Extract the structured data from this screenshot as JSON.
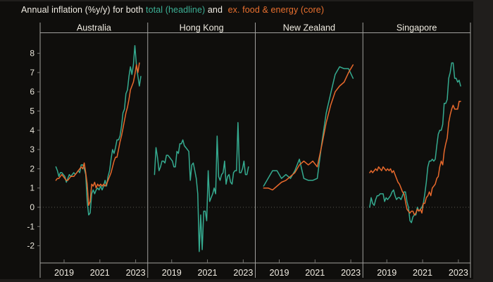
{
  "title": {
    "prefix": "Annual inflation (%y/y) for both ",
    "headline_label": "total (headline)",
    "connector": " and ",
    "core_label": "ex. food & energy (core)"
  },
  "colors": {
    "headline": "#35ab90",
    "core": "#e8692c",
    "frame": "#a0a09d",
    "tick": "#777672",
    "zero_line": "#57554e",
    "chart_background": "#0f0e0c",
    "page_background": "#201e1c",
    "text": "#efebe1"
  },
  "axis": {
    "y_ticks": [
      8,
      7,
      6,
      5,
      4,
      3,
      2,
      1,
      0,
      -1,
      -2
    ],
    "x_ticks": [
      2019,
      2021,
      2023
    ]
  },
  "chart_data": {
    "type": "line",
    "y_label": "%y/y",
    "ylim": [
      -2.9,
      9.1
    ],
    "x_range_years": [
      2017.6,
      2023.75
    ],
    "grid": "zero-line-only-dotted",
    "legend_position": "in-title",
    "panels": [
      {
        "name": "Australia",
        "series": [
          {
            "name": "total (headline)",
            "role": "headline",
            "start": "2018-07",
            "frequency": "monthly",
            "values": [
              2.1,
              1.9,
              1.6,
              1.8,
              1.8,
              1.7,
              1.6,
              1.3,
              1.5,
              1.7,
              1.6,
              1.7,
              1.8,
              1.7,
              1.8,
              1.9,
              1.8,
              2.2,
              2.2,
              2.0,
              1.7,
              0.3,
              -0.4,
              -0.3,
              0.7,
              0.9,
              0.7,
              0.9,
              1.0,
              0.9,
              1.1,
              0.9,
              1.1,
              1.4,
              1.1,
              1.6,
              1.9,
              2.5,
              3.0,
              2.8,
              3.1,
              3.5,
              3.5,
              3.7,
              4.2,
              4.9,
              5.1,
              5.9,
              6.1,
              6.8,
              7.3,
              6.9,
              7.4,
              8.4,
              7.4,
              6.8,
              6.3,
              6.8
            ]
          },
          {
            "name": "ex. food & energy (core)",
            "role": "core",
            "start": "2018-07",
            "frequency": "monthly",
            "values": [
              1.4,
              1.5,
              1.5,
              1.6,
              1.7,
              1.6,
              1.5,
              1.4,
              1.4,
              1.5,
              1.6,
              1.6,
              1.6,
              1.7,
              1.8,
              1.9,
              2.0,
              2.1,
              2.0,
              2.3,
              1.8,
              1.2,
              0.1,
              0.3,
              1.2,
              1.1,
              1.3,
              1.0,
              1.2,
              1.1,
              1.2,
              1.1,
              1.2,
              1.1,
              1.2,
              1.4,
              1.6,
              1.8,
              2.1,
              2.4,
              2.6,
              2.6,
              3.0,
              3.4,
              3.7,
              4.1,
              4.5,
              4.9,
              5.2,
              5.6,
              6.1,
              6.3,
              6.5,
              6.9,
              7.4,
              7.0,
              7.5
            ]
          }
        ]
      },
      {
        "name": "Hong Kong",
        "series": [
          {
            "name": "total (headline)",
            "role": "headline",
            "start": "2018-01",
            "frequency": "monthly",
            "values": [
              1.7,
              3.1,
              2.6,
              1.9,
              2.1,
              2.4,
              2.4,
              2.3,
              2.7,
              2.7,
              2.6,
              2.5,
              2.4,
              2.1,
              2.1,
              2.9,
              2.8,
              3.3,
              3.3,
              3.5,
              3.2,
              3.1,
              3.0,
              2.9,
              1.4,
              2.2,
              2.3,
              1.9,
              1.5,
              0.7,
              -2.3,
              -0.4,
              -2.2,
              -0.2,
              -0.2,
              -0.7,
              1.9,
              0.3,
              0.5,
              0.7,
              1.0,
              0.7,
              3.7,
              1.6,
              1.4,
              1.7,
              1.8,
              2.4,
              1.2,
              1.6,
              1.7,
              1.3,
              1.2,
              1.8,
              1.9,
              1.9,
              4.4,
              1.8,
              1.8,
              2.0,
              2.4,
              1.7,
              1.7,
              2.1
            ]
          }
        ]
      },
      {
        "name": "New Zealand",
        "series": [
          {
            "name": "total (headline)",
            "role": "headline",
            "start": "2018-Q1",
            "frequency": "quarterly",
            "values": [
              1.1,
              1.5,
              1.9,
              1.9,
              1.5,
              1.7,
              1.5,
              1.9,
              2.5,
              1.5,
              1.4,
              1.4,
              1.5,
              3.3,
              4.9,
              5.9,
              6.9,
              7.3,
              7.2,
              7.2,
              6.7
            ]
          },
          {
            "name": "ex. food & energy (core)",
            "role": "core",
            "start": "2018-Q1",
            "frequency": "quarterly",
            "values": [
              1.0,
              1.0,
              0.9,
              1.1,
              1.3,
              1.4,
              1.6,
              1.8,
              2.2,
              2.4,
              2.2,
              2.4,
              2.1,
              3.2,
              4.4,
              5.3,
              6.0,
              6.3,
              6.5,
              7.0,
              7.4
            ]
          }
        ]
      },
      {
        "name": "Singapore",
        "series": [
          {
            "name": "total (headline)",
            "role": "headline",
            "start": "2018-01",
            "frequency": "monthly",
            "values": [
              0.0,
              0.5,
              0.2,
              0.1,
              0.4,
              0.6,
              0.6,
              0.7,
              0.7,
              0.7,
              0.3,
              0.5,
              0.4,
              0.5,
              0.6,
              0.8,
              0.9,
              0.6,
              0.4,
              0.5,
              0.5,
              0.4,
              0.6,
              0.8,
              0.8,
              0.3,
              0.0,
              -0.7,
              -0.8,
              -0.5,
              -0.4,
              -0.4,
              0.0,
              -0.2,
              -0.1,
              0.0,
              0.2,
              0.7,
              1.3,
              2.1,
              2.4,
              2.4,
              2.5,
              2.4,
              2.5,
              3.2,
              3.8,
              4.0,
              4.0,
              4.3,
              5.4,
              5.4,
              5.6,
              6.7,
              7.0,
              7.5,
              7.5,
              6.7,
              6.7,
              6.5,
              6.6,
              6.3
            ]
          },
          {
            "name": "ex. food & energy (core)",
            "role": "core",
            "start": "2018-01",
            "frequency": "monthly",
            "values": [
              1.8,
              1.9,
              1.8,
              1.9,
              2.0,
              1.9,
              2.1,
              2.0,
              1.9,
              2.1,
              2.0,
              1.9,
              2.0,
              1.9,
              2.0,
              1.8,
              1.9,
              1.7,
              1.5,
              1.3,
              1.2,
              1.0,
              0.8,
              0.7,
              0.3,
              -0.1,
              -0.2,
              -0.3,
              -0.2,
              -0.2,
              -0.4,
              -0.3,
              -0.1,
              -0.2,
              -0.1,
              -0.3,
              0.2,
              0.2,
              0.5,
              0.6,
              0.8,
              0.6,
              1.0,
              1.1,
              1.2,
              1.5,
              1.6,
              2.1,
              2.4,
              2.2,
              2.9,
              3.3,
              3.6,
              4.4,
              4.8,
              5.1,
              5.3,
              5.1,
              5.1,
              5.1,
              5.5,
              5.5
            ]
          }
        ]
      }
    ]
  }
}
